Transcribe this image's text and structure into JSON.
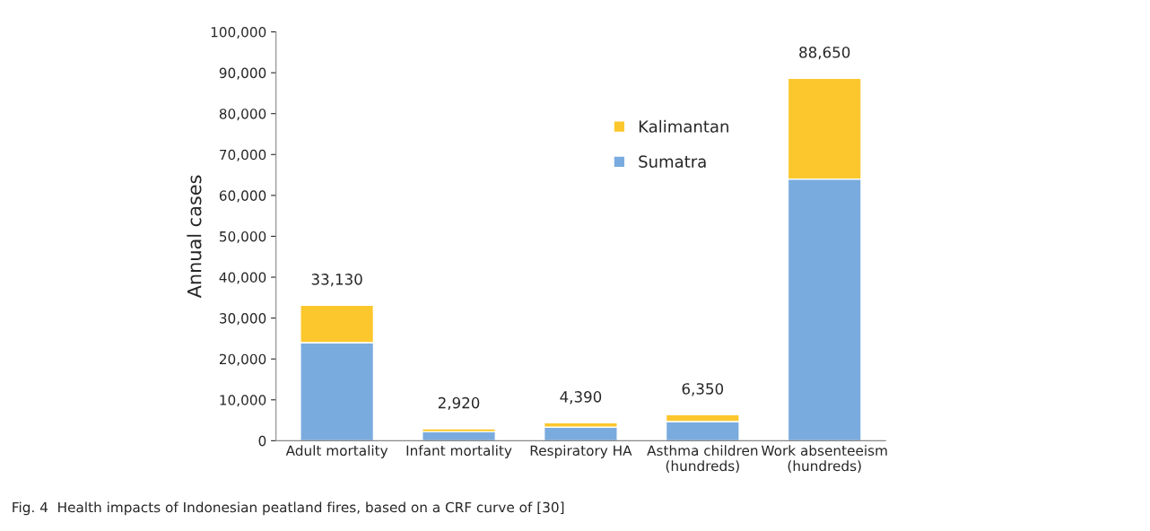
{
  "chart_data": {
    "type": "bar",
    "stacked": true,
    "ylabel": "Annual cases",
    "categories": [
      "Adult mortality",
      "Infant mortality",
      "Respiratory HA",
      "Asthma children\n(hundreds)",
      "Work absenteeism\n(hundreds)"
    ],
    "series": [
      {
        "name": "Sumatra",
        "color": "#7aabde",
        "values": [
          24000,
          2200,
          3300,
          4700,
          64000
        ]
      },
      {
        "name": "Kalimantan",
        "color": "#fcc72c",
        "values": [
          9130,
          720,
          1090,
          1650,
          24650
        ]
      }
    ],
    "totals": [
      "33,130",
      "2,920",
      "4,390",
      "6,350",
      "88,650"
    ],
    "ylim": [
      0,
      100000
    ],
    "yticks": [
      {
        "value": 0,
        "label": "0"
      },
      {
        "value": 10000,
        "label": "10,000"
      },
      {
        "value": 20000,
        "label": "20,000"
      },
      {
        "value": 30000,
        "label": "30,000"
      },
      {
        "value": 40000,
        "label": "40,000"
      },
      {
        "value": 50000,
        "label": "50,000"
      },
      {
        "value": 60000,
        "label": "60,000"
      },
      {
        "value": 70000,
        "label": "70,000"
      },
      {
        "value": 80000,
        "label": "80,000"
      },
      {
        "value": 90000,
        "label": "90,000"
      },
      {
        "value": 100000,
        "label": "100,000"
      }
    ],
    "grid": false,
    "legend": "top right",
    "annotations": [
      "Fig. 4  Health impacts of Indonesian peatland fires, based on a CRF curve of [30]"
    ]
  }
}
